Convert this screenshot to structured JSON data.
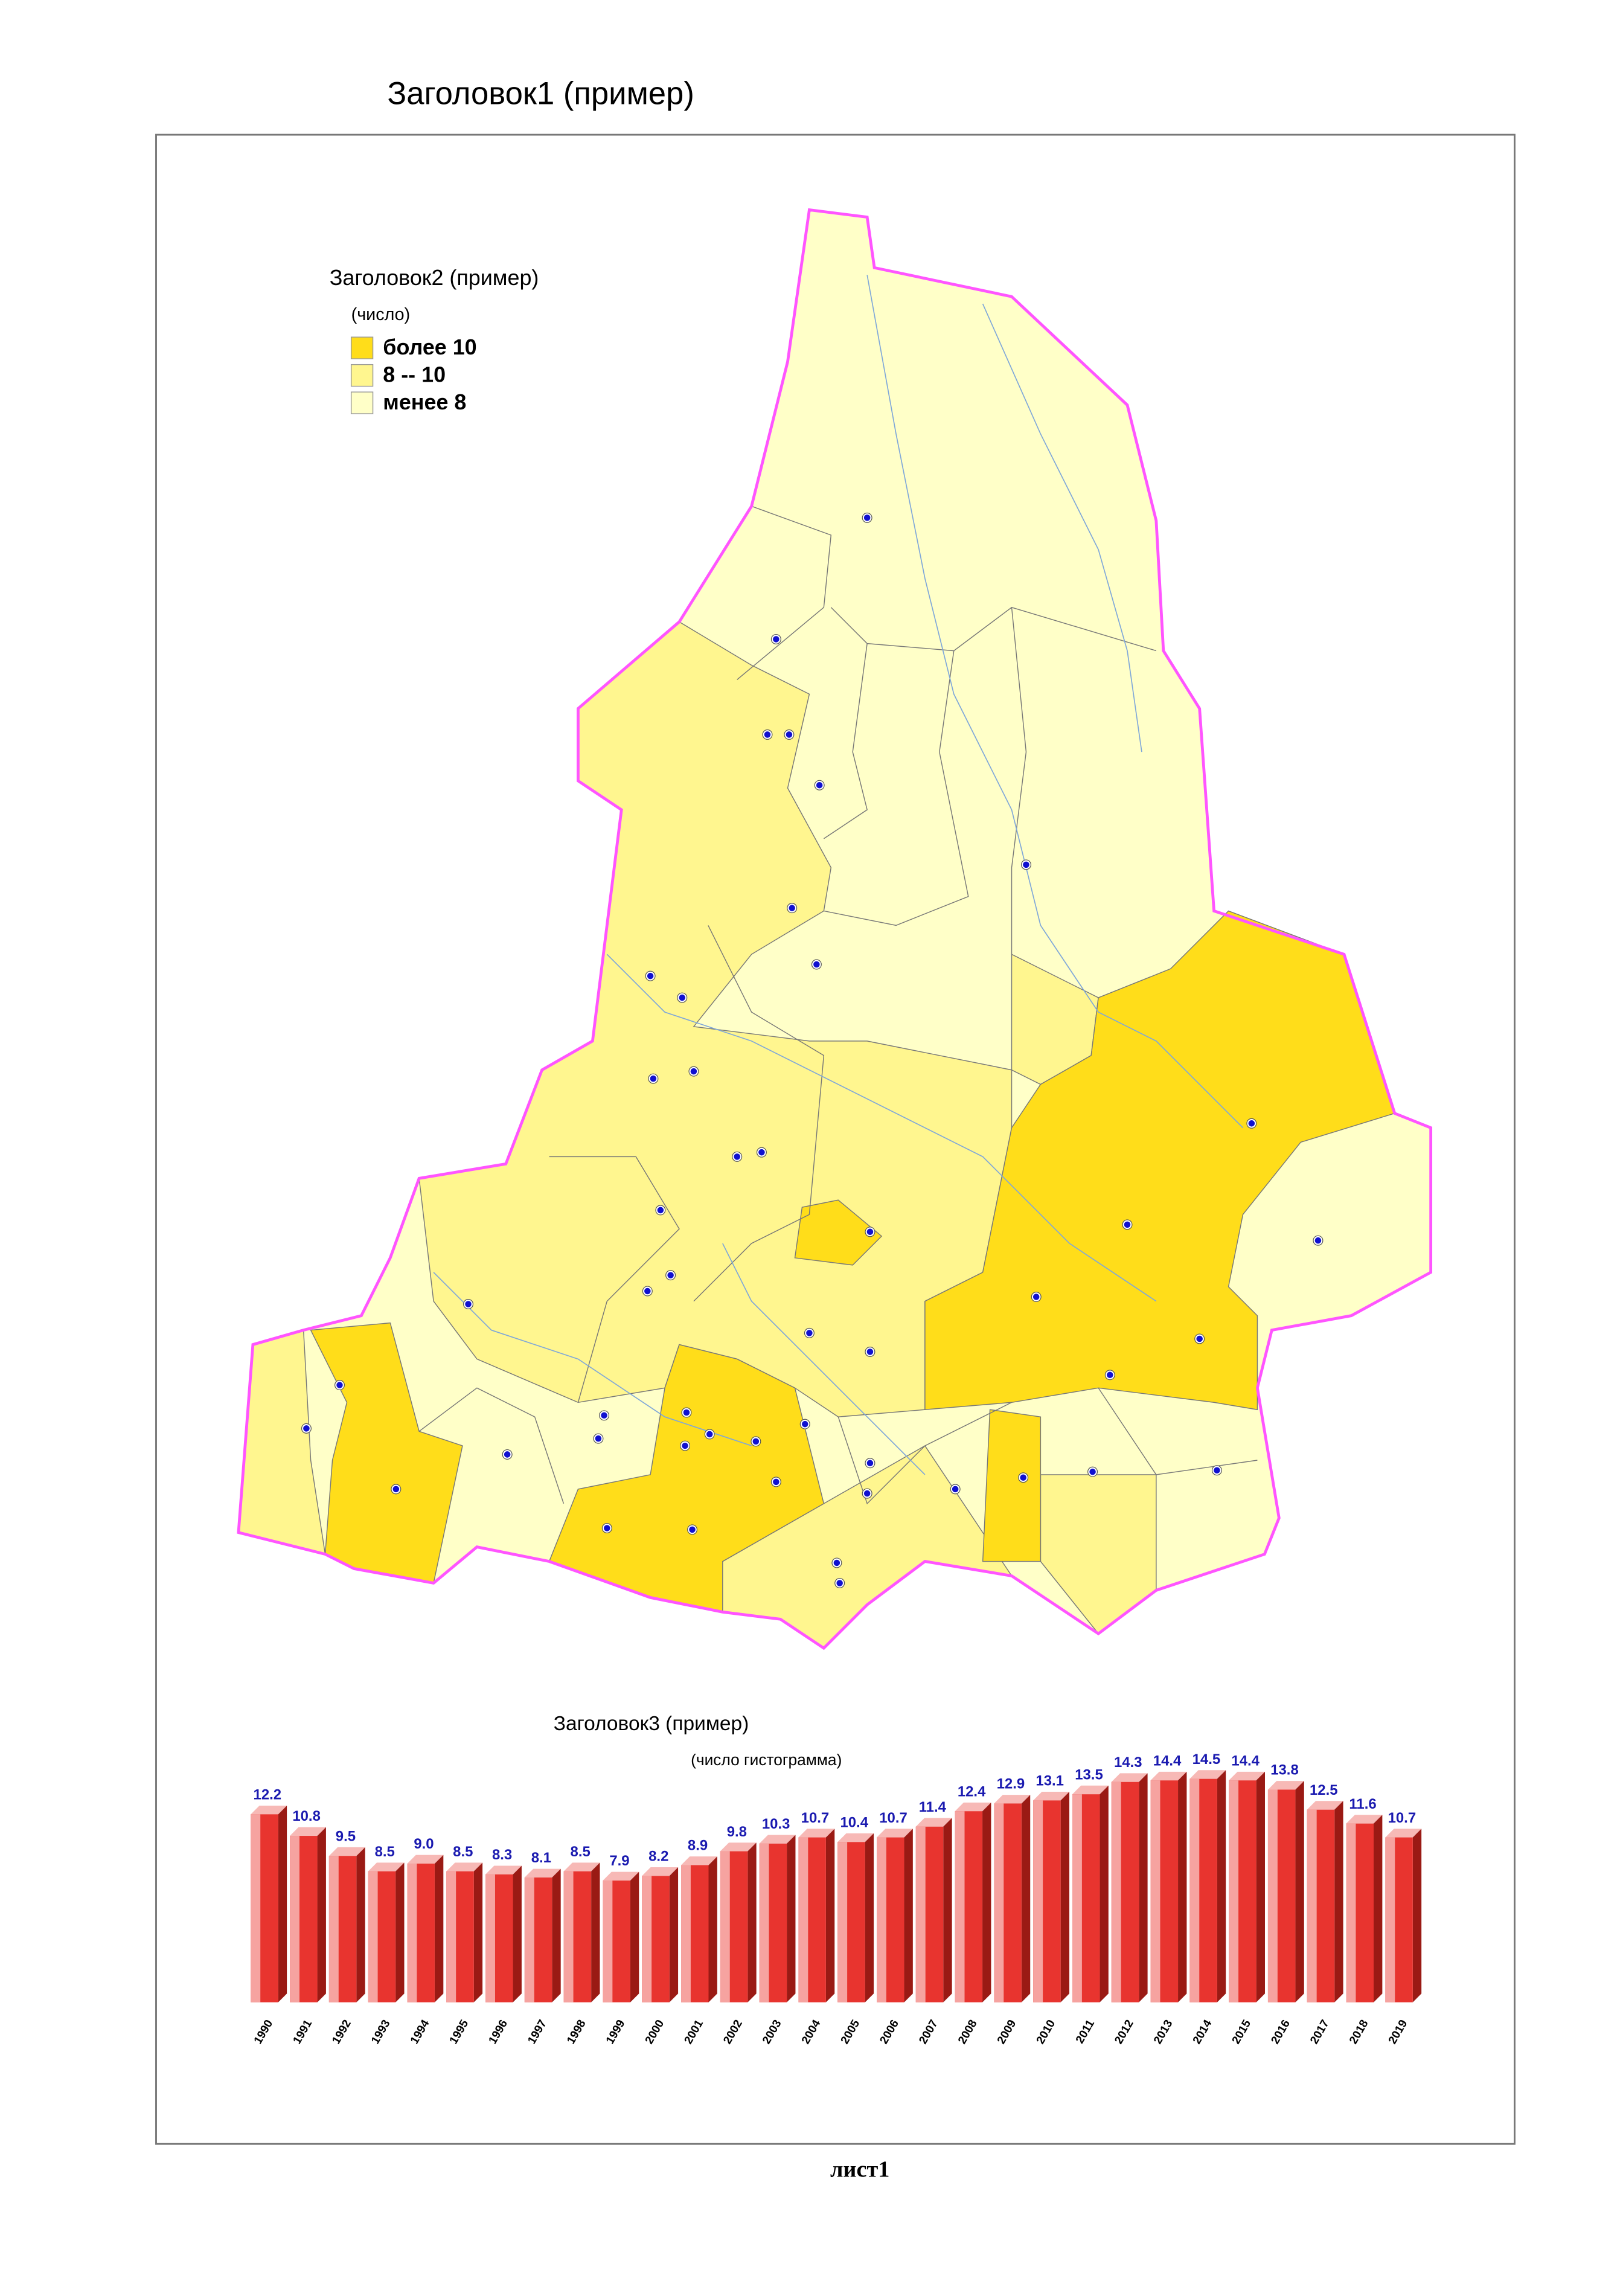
{
  "title": "Заголовок1 (пример)",
  "map": {
    "title": "Заголовок2 (пример)",
    "subtitle": "(число)",
    "legend": [
      {
        "label": "более 10",
        "color": "#ffdd1a"
      },
      {
        "label": "8 -- 10",
        "color": "#fff68f"
      },
      {
        "label": "менее 8",
        "color": "#ffffc8"
      }
    ]
  },
  "chart_data": {
    "type": "bar",
    "title": "Заголовок3 (пример)",
    "subtitle": "(число гистограмма)",
    "categories": [
      "1990",
      "1991",
      "1992",
      "1993",
      "1994",
      "1995",
      "1996",
      "1997",
      "1998",
      "1999",
      "2000",
      "2001",
      "2002",
      "2003",
      "2004",
      "2005",
      "2006",
      "2007",
      "2008",
      "2009",
      "2010",
      "2011",
      "2012",
      "2013",
      "2014",
      "2015",
      "2016",
      "2017",
      "2018",
      "2019"
    ],
    "values": [
      12.2,
      10.8,
      9.5,
      8.5,
      9.0,
      8.5,
      8.3,
      8.1,
      8.5,
      7.9,
      8.2,
      8.9,
      9.8,
      10.3,
      10.7,
      10.4,
      10.7,
      11.4,
      12.4,
      12.9,
      13.1,
      13.5,
      14.3,
      14.4,
      14.5,
      14.4,
      13.8,
      12.5,
      11.6,
      10.7
    ],
    "value_labels": [
      "12.2",
      "10.8",
      "9.5",
      "8.5",
      "9.0",
      "8.5",
      "8.3",
      "8.1",
      "8.5",
      "7.9",
      "8.2",
      "8.9",
      "9.8",
      "10.3",
      "10.7",
      "10.4",
      "10.7",
      "11.4",
      "12.4",
      "12.9",
      "13.1",
      "13.5",
      "14.3",
      "14.4",
      "14.5",
      "14.4",
      "13.8",
      "12.5",
      "11.6",
      "10.7"
    ],
    "color": "#e8342f"
  },
  "footer": "лист1"
}
